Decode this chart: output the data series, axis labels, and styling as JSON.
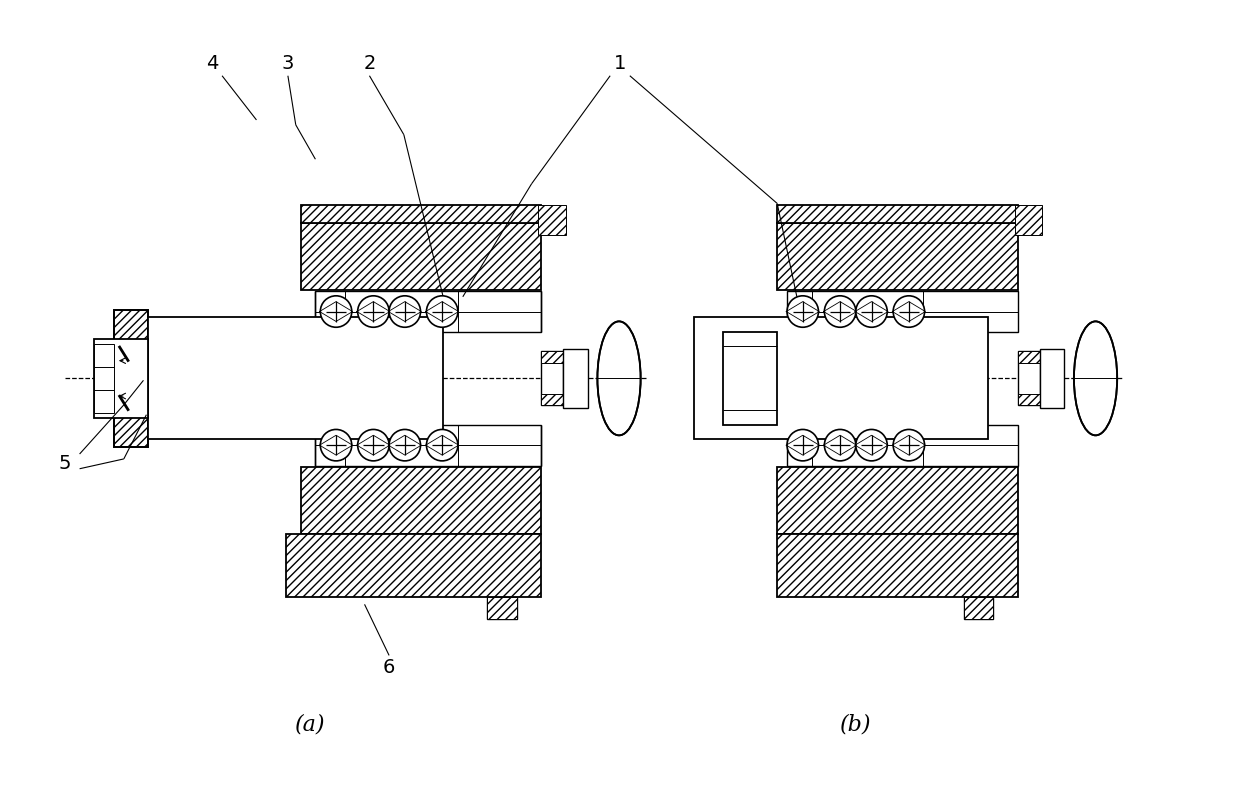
{
  "figure_width": 12.4,
  "figure_height": 7.96,
  "dpi": 100,
  "bg_color": "#ffffff",
  "line_color": "#000000",
  "title_a": "(a)",
  "title_b": "(b)",
  "label_fontsize": 14,
  "title_fontsize": 16
}
